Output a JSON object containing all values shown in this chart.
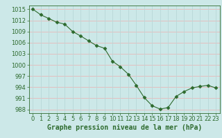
{
  "x": [
    0,
    1,
    2,
    3,
    4,
    5,
    6,
    7,
    8,
    9,
    10,
    11,
    12,
    13,
    14,
    15,
    16,
    17,
    18,
    19,
    20,
    21,
    22,
    23
  ],
  "y": [
    1015.0,
    1013.5,
    1012.5,
    1011.5,
    1011.0,
    1009.0,
    1007.8,
    1006.5,
    1005.2,
    1004.5,
    1001.0,
    999.5,
    997.5,
    994.5,
    991.2,
    989.0,
    988.1,
    988.5,
    991.5,
    992.8,
    993.8,
    994.2,
    994.5,
    993.8
  ],
  "line_color": "#2d6a2d",
  "marker": "D",
  "marker_size": 2.5,
  "bg_color": "#cce8e8",
  "grid_color_h": "#e8b8b8",
  "grid_color_v": "#b8d8d8",
  "ylim": [
    987,
    1016
  ],
  "yticks": [
    988,
    991,
    994,
    997,
    1000,
    1003,
    1006,
    1009,
    1012,
    1015
  ],
  "xlim": [
    -0.5,
    23.5
  ],
  "xlabel": "Graphe pression niveau de la mer (hPa)",
  "xlabel_fontsize": 7,
  "tick_fontsize": 6,
  "label_color": "#2d6a2d"
}
